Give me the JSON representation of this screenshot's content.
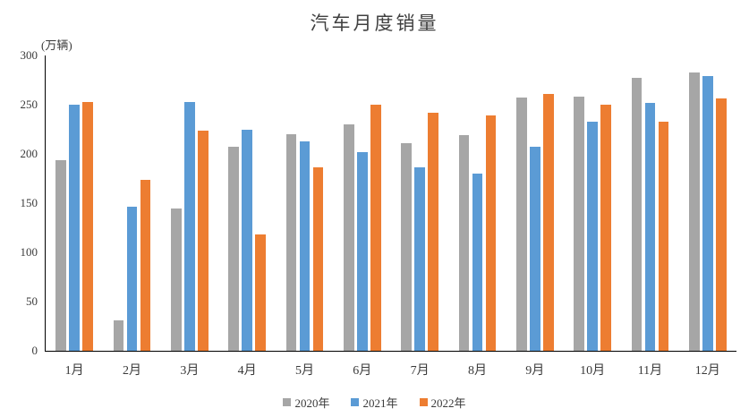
{
  "chart_data": {
    "type": "bar",
    "title": "汽车月度销量",
    "ylabel": "(万辆)",
    "xlabel": "",
    "categories": [
      "1月",
      "2月",
      "3月",
      "4月",
      "5月",
      "6月",
      "7月",
      "8月",
      "9月",
      "10月",
      "11月",
      "12月"
    ],
    "series": [
      {
        "name": "2020年",
        "color": "#A6A6A6",
        "values": [
          194,
          31,
          145,
          207,
          220,
          230,
          211,
          219,
          257,
          258,
          277,
          283
        ]
      },
      {
        "name": "2021年",
        "color": "#5B9BD5",
        "values": [
          250,
          146,
          253,
          225,
          213,
          202,
          186,
          180,
          207,
          233,
          252,
          279
        ]
      },
      {
        "name": "2022年",
        "color": "#ED7D31",
        "values": [
          253,
          174,
          224,
          118,
          186,
          250,
          242,
          239,
          261,
          250,
          233,
          256
        ]
      }
    ],
    "ylim": [
      0,
      300
    ],
    "yticks": [
      0,
      50,
      100,
      150,
      200,
      250,
      300
    ],
    "grid": false,
    "legend_position": "bottom",
    "axis_color": "#000000",
    "text_color": "#3a3a3a"
  }
}
